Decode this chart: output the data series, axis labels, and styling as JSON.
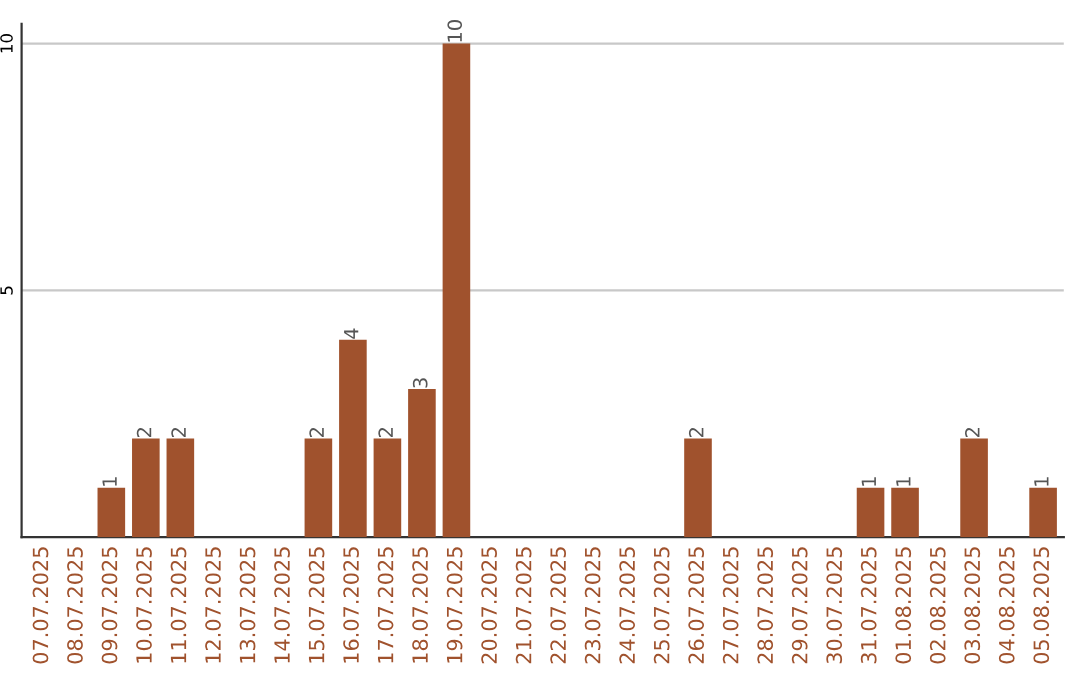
{
  "chart_data": {
    "type": "bar",
    "categories": [
      "07.07.2025",
      "08.07.2025",
      "09.07.2025",
      "10.07.2025",
      "11.07.2025",
      "12.07.2025",
      "13.07.2025",
      "14.07.2025",
      "15.07.2025",
      "16.07.2025",
      "17.07.2025",
      "18.07.2025",
      "19.07.2025",
      "20.07.2025",
      "21.07.2025",
      "22.07.2025",
      "23.07.2025",
      "24.07.2025",
      "25.07.2025",
      "26.07.2025",
      "27.07.2025",
      "28.07.2025",
      "29.07.2025",
      "30.07.2025",
      "31.07.2025",
      "01.08.2025",
      "02.08.2025",
      "03.08.2025",
      "04.08.2025",
      "05.08.2025"
    ],
    "values": [
      0,
      0,
      1,
      2,
      2,
      0,
      0,
      0,
      2,
      4,
      2,
      3,
      10,
      0,
      0,
      0,
      0,
      0,
      0,
      2,
      0,
      0,
      0,
      0,
      1,
      1,
      0,
      2,
      0,
      1
    ],
    "value_labels": [
      null,
      null,
      "1",
      "2",
      "2",
      null,
      null,
      null,
      "2",
      "4",
      "2",
      "3",
      "10",
      null,
      null,
      null,
      null,
      null,
      null,
      "2",
      null,
      null,
      null,
      null,
      "1",
      "1",
      null,
      "2",
      null,
      "1"
    ],
    "color": "#a0522d",
    "ylim": [
      0,
      10.4
    ],
    "yticks": [
      5,
      10
    ],
    "grid": "y"
  }
}
